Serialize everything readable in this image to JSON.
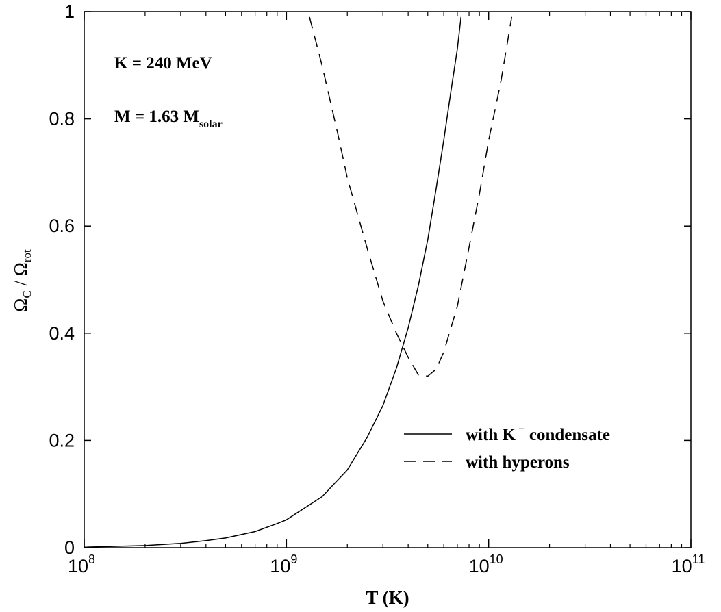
{
  "chart_data": {
    "type": "line",
    "xscale": "log",
    "xlim": [
      100000000,
      100000000000
    ],
    "ylim": [
      0,
      1
    ],
    "x_tick_labels": [
      {
        "base": "10",
        "exp": "8",
        "value": 100000000
      },
      {
        "base": "10",
        "exp": "9",
        "value": 1000000000
      },
      {
        "base": "10",
        "exp": "10",
        "value": 10000000000
      },
      {
        "base": "10",
        "exp": "11",
        "value": 100000000000
      }
    ],
    "y_ticks": [
      0,
      0.2,
      0.4,
      0.6,
      0.8,
      1
    ],
    "y_tick_labels": [
      "0",
      "0.2",
      "0.4",
      "0.6",
      "0.8",
      "1"
    ],
    "xlabel": "T (K)",
    "ylabel": {
      "omega1": "Ω",
      "sub1": "C",
      "slash": " / ",
      "omega2": "Ω",
      "sub2": "rot"
    },
    "annotations": {
      "line1": "K = 240 MeV",
      "line2_main": "M = 1.63 M",
      "line2_sub": "solar"
    },
    "grid": false,
    "legend_position": "lower-right",
    "series": [
      {
        "name": "with K⁻ condensate",
        "legend_main": "with K",
        "legend_sup": "−",
        "legend_tail": " condensate",
        "style": "solid",
        "points": [
          [
            100000000,
            0.001
          ],
          [
            200000000,
            0.004
          ],
          [
            300000000,
            0.008
          ],
          [
            400000000,
            0.013
          ],
          [
            500000000,
            0.018
          ],
          [
            700000000,
            0.03
          ],
          [
            900000000,
            0.045
          ],
          [
            1000000000,
            0.052
          ],
          [
            1500000000,
            0.095
          ],
          [
            2000000000,
            0.145
          ],
          [
            2500000000,
            0.205
          ],
          [
            3000000000,
            0.265
          ],
          [
            3500000000,
            0.335
          ],
          [
            4000000000,
            0.41
          ],
          [
            4500000000,
            0.49
          ],
          [
            5000000000,
            0.575
          ],
          [
            5500000000,
            0.67
          ],
          [
            6000000000,
            0.76
          ],
          [
            6500000000,
            0.85
          ],
          [
            7000000000,
            0.93
          ],
          [
            7300000000,
            0.99
          ]
        ]
      },
      {
        "name": "with hyperons",
        "legend_main": "with hyperons",
        "style": "dashed",
        "points": [
          [
            1300000000,
            0.99
          ],
          [
            1500000000,
            0.9
          ],
          [
            1800000000,
            0.77
          ],
          [
            2000000000,
            0.69
          ],
          [
            2500000000,
            0.56
          ],
          [
            3000000000,
            0.46
          ],
          [
            3500000000,
            0.4
          ],
          [
            4000000000,
            0.355
          ],
          [
            4500000000,
            0.322
          ],
          [
            5000000000,
            0.32
          ],
          [
            5500000000,
            0.333
          ],
          [
            6000000000,
            0.365
          ],
          [
            7000000000,
            0.45
          ],
          [
            8000000000,
            0.56
          ],
          [
            9000000000,
            0.66
          ],
          [
            10000000000,
            0.76
          ],
          [
            11500000000,
            0.87
          ],
          [
            13000000000,
            0.99
          ]
        ]
      }
    ]
  }
}
